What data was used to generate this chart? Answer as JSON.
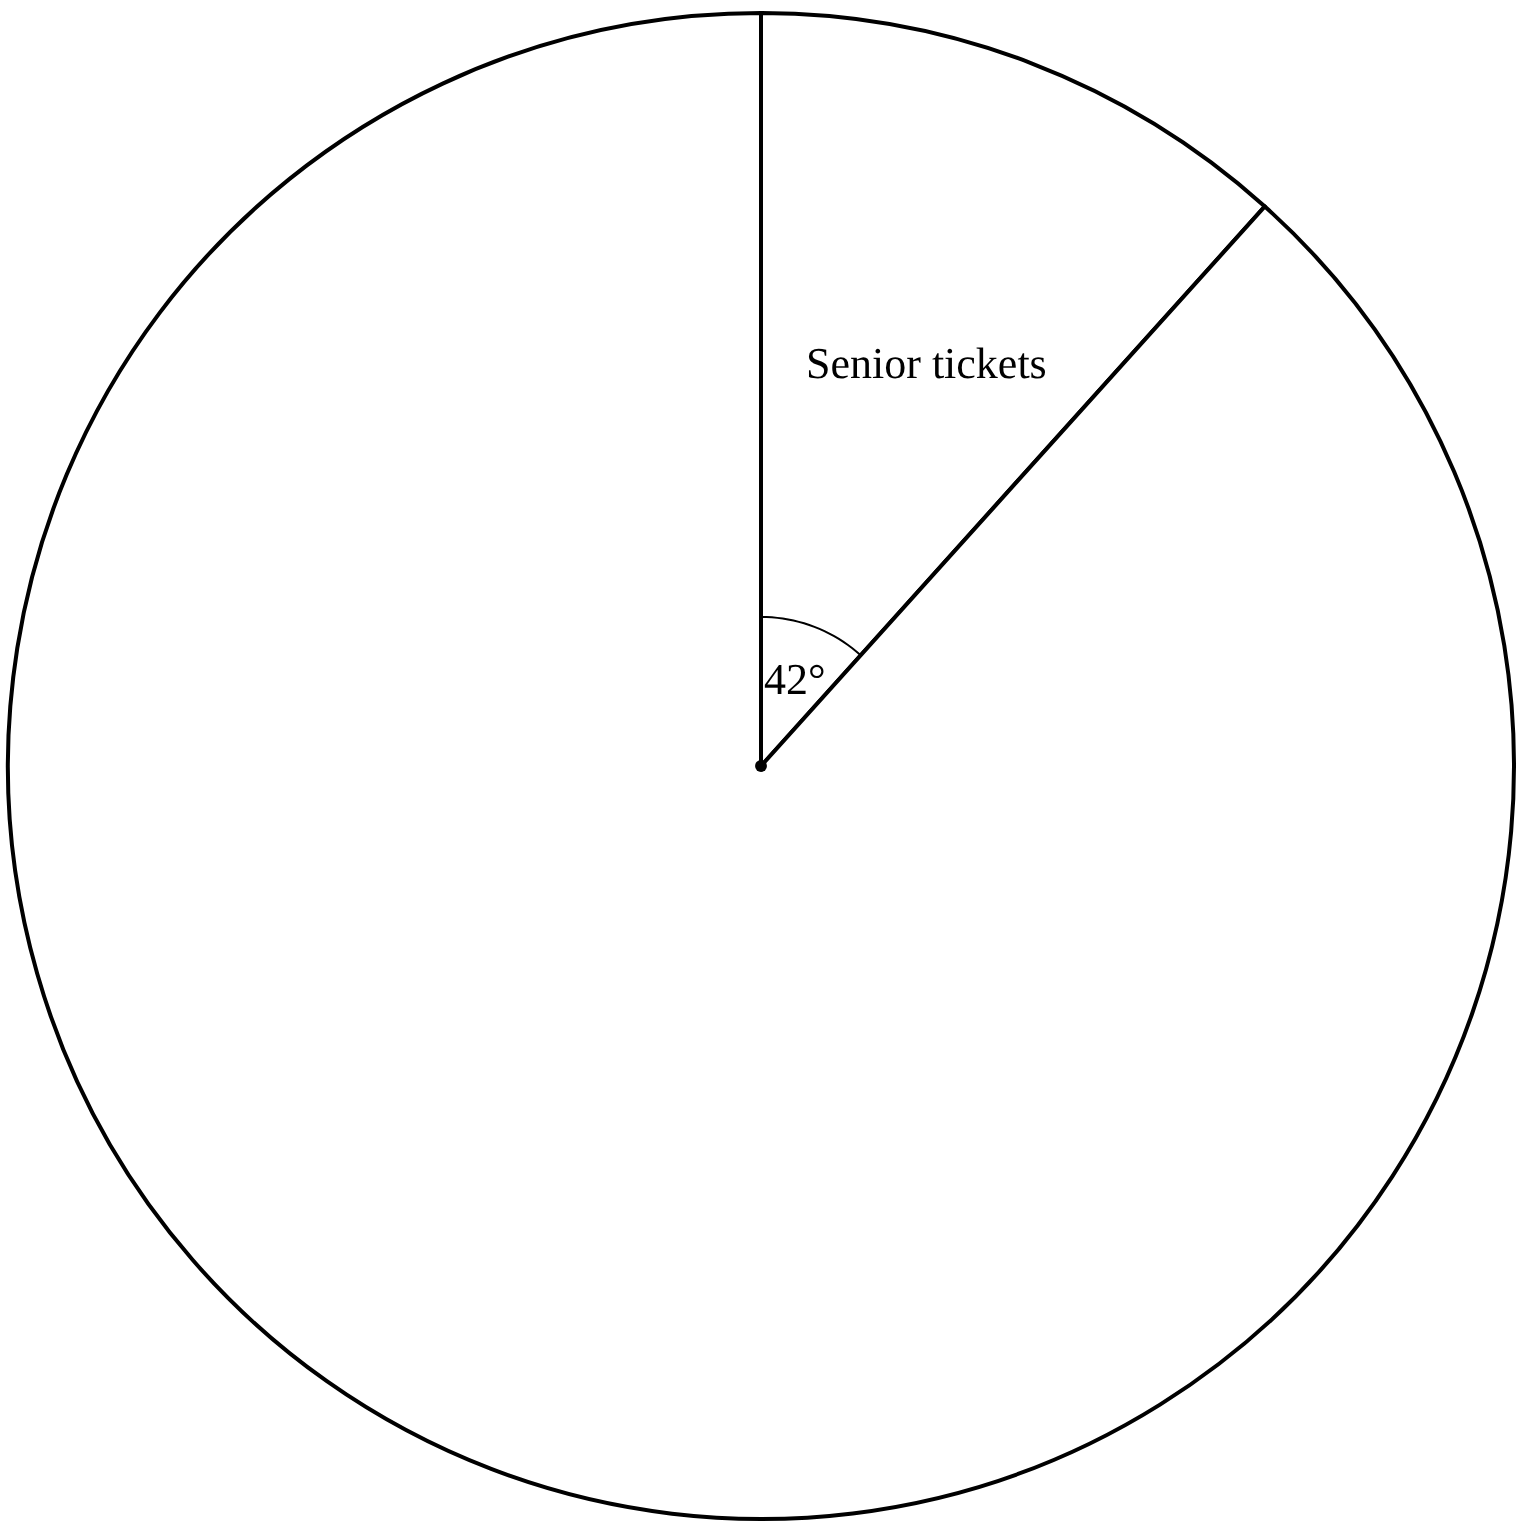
{
  "chart_data": {
    "type": "pie",
    "categories": [
      "Senior tickets",
      null
    ],
    "values": [
      42,
      318
    ],
    "value_labels": [
      "42°",
      null
    ],
    "colors": [
      "#ffffff",
      "#ffffff"
    ],
    "legend": false
  }
}
